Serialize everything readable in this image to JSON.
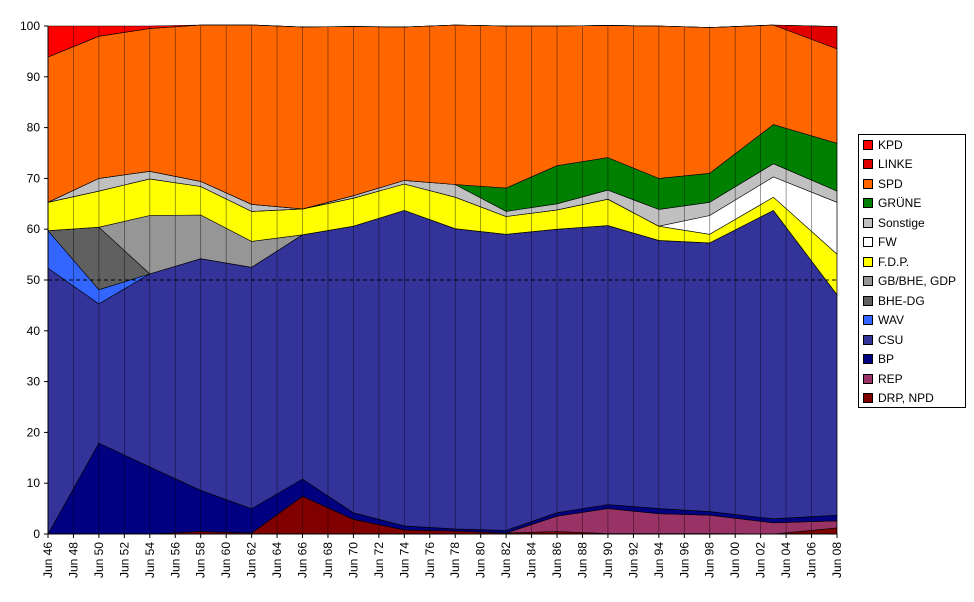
{
  "chart_data": {
    "type": "area",
    "stacked": true,
    "ylim": [
      0,
      100
    ],
    "yticks": [
      0,
      10,
      20,
      30,
      40,
      50,
      60,
      70,
      80,
      90,
      100
    ],
    "reference_line": 50,
    "grid": "vertical",
    "legend_position": "right",
    "x_tick_labels": [
      "Jun 46",
      "Jun 48",
      "Jun 50",
      "Jun 52",
      "Jun 54",
      "Jun 56",
      "Jun 58",
      "Jun 60",
      "Jun 62",
      "Jun 64",
      "Jun 66",
      "Jun 68",
      "Jun 70",
      "Jun 72",
      "Jun 74",
      "Jun 76",
      "Jun 78",
      "Jun 80",
      "Jun 82",
      "Jun 84",
      "Jun 86",
      "Jun 88",
      "Jun 90",
      "Jun 92",
      "Jun 94",
      "Jun 96",
      "Jun 98",
      "Jun 00",
      "Jun 02",
      "Jun 04",
      "Jun 06",
      "Jun 08"
    ],
    "x": [
      1946,
      1950,
      1954,
      1958,
      1962,
      1966,
      1970,
      1974,
      1978,
      1982,
      1986,
      1990,
      1994,
      1998,
      2003,
      2008
    ],
    "series": [
      {
        "name": "DRP, NPD",
        "color": "#800000",
        "values": [
          0,
          0,
          0,
          0.5,
          0.2,
          7.4,
          2.9,
          0.8,
          0.6,
          0.2,
          0.5,
          0.1,
          0.1,
          0.1,
          0,
          1.2
        ]
      },
      {
        "name": "REP",
        "color": "#993366",
        "values": [
          0,
          0,
          0,
          0,
          0,
          0,
          0,
          0,
          0,
          0,
          3.0,
          4.9,
          3.9,
          3.6,
          2.2,
          1.4
        ]
      },
      {
        "name": "BP",
        "color": "#000080",
        "values": [
          0,
          17.9,
          13.2,
          8.1,
          4.8,
          3.4,
          1.3,
          0.8,
          0.4,
          0.5,
          0.7,
          0.8,
          1.0,
          0.7,
          0.8,
          1.1
        ]
      },
      {
        "name": "CSU",
        "color": "#333399",
        "values": [
          52.3,
          27.4,
          38.0,
          45.6,
          47.5,
          48.1,
          56.4,
          62.1,
          59.1,
          58.3,
          55.8,
          54.9,
          52.8,
          52.9,
          60.7,
          43.4
        ]
      },
      {
        "name": "WAV",
        "color": "#3366FF",
        "values": [
          7.4,
          2.8,
          0,
          0,
          0,
          0,
          0,
          0,
          0,
          0,
          0,
          0,
          0,
          0,
          0,
          0
        ]
      },
      {
        "name": "BHE-DG",
        "color": "#606060",
        "values": [
          0,
          12.3,
          0,
          0,
          0,
          0,
          0,
          0,
          0,
          0,
          0,
          0,
          0,
          0,
          0,
          0
        ]
      },
      {
        "name": "GB/BHE, GDP",
        "color": "#969696",
        "values": [
          0,
          0,
          11.5,
          8.6,
          5.1,
          0,
          0,
          0,
          0,
          0,
          0,
          0,
          0,
          0,
          0,
          0
        ]
      },
      {
        "name": "F.D.P.",
        "color": "#FFFF00",
        "values": [
          5.6,
          7.1,
          7.2,
          5.6,
          5.9,
          5.1,
          5.5,
          5.2,
          6.2,
          3.5,
          3.8,
          5.2,
          2.8,
          1.7,
          2.6,
          8.0
        ]
      },
      {
        "name": "FW",
        "color": "#FFFFFF",
        "values": [
          0,
          0,
          0,
          0,
          0,
          0,
          0,
          0,
          0,
          0,
          0,
          0,
          0,
          3.7,
          4.0,
          10.2
        ]
      },
      {
        "name": "Sonstige",
        "color": "#C0C0C0",
        "values": [
          0,
          2.5,
          1.5,
          1.0,
          1.4,
          0,
          0.5,
          0.7,
          2.5,
          1.0,
          1.2,
          1.8,
          3.3,
          2.6,
          2.6,
          2.2
        ]
      },
      {
        "name": "GRÜNE",
        "color": "#008000",
        "values": [
          0,
          0,
          0,
          0,
          0,
          0,
          0,
          0,
          0,
          4.6,
          7.5,
          6.4,
          6.1,
          5.7,
          7.7,
          9.4
        ]
      },
      {
        "name": "SPD",
        "color": "#FF6600",
        "values": [
          28.6,
          28.0,
          28.1,
          30.8,
          35.3,
          35.8,
          33.3,
          30.2,
          31.4,
          31.9,
          27.5,
          26.0,
          30.0,
          28.7,
          19.6,
          18.6
        ]
      },
      {
        "name": "LINKE",
        "color": "#E00000",
        "values": [
          0,
          0,
          0,
          0,
          0,
          0,
          0,
          0,
          0,
          0,
          0,
          0,
          0,
          0,
          0,
          4.4
        ]
      },
      {
        "name": "KPD",
        "color": "#FF0000",
        "values": [
          6.1,
          2.0,
          0.5,
          0,
          0,
          0,
          0,
          0,
          0,
          0,
          0,
          0,
          0,
          0,
          0,
          0
        ]
      }
    ],
    "legend_order": [
      "KPD",
      "LINKE",
      "SPD",
      "GRÜNE",
      "Sonstige",
      "FW",
      "F.D.P.",
      "GB/BHE, GDP",
      "BHE-DG",
      "WAV",
      "CSU",
      "BP",
      "REP",
      "DRP, NPD"
    ]
  }
}
